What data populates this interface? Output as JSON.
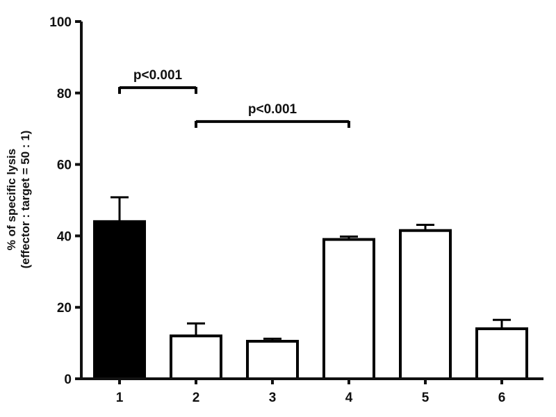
{
  "chart_data": {
    "type": "bar",
    "title": "",
    "xlabel": "",
    "ylabel_line1": "% of specific lysis",
    "ylabel_line2": "(effector : target = 50 : 1)",
    "ylim": [
      0,
      100
    ],
    "yticks": [
      0,
      20,
      40,
      60,
      80,
      100
    ],
    "categories": [
      "1",
      "2",
      "3",
      "4",
      "5",
      "6"
    ],
    "values": [
      44,
      12,
      10.5,
      39,
      41.5,
      14
    ],
    "errors": [
      6.8,
      3.5,
      0.7,
      0.8,
      1.6,
      2.5
    ],
    "fills": [
      "#000000",
      "#ffffff",
      "#ffffff",
      "#ffffff",
      "#ffffff",
      "#ffffff"
    ],
    "grid": false,
    "annotations": [
      {
        "text": "p<0.001",
        "from": 0,
        "to": 1,
        "y": 81.5
      },
      {
        "text": "p<0.001",
        "from": 1,
        "to": 3,
        "y": 72
      }
    ]
  }
}
